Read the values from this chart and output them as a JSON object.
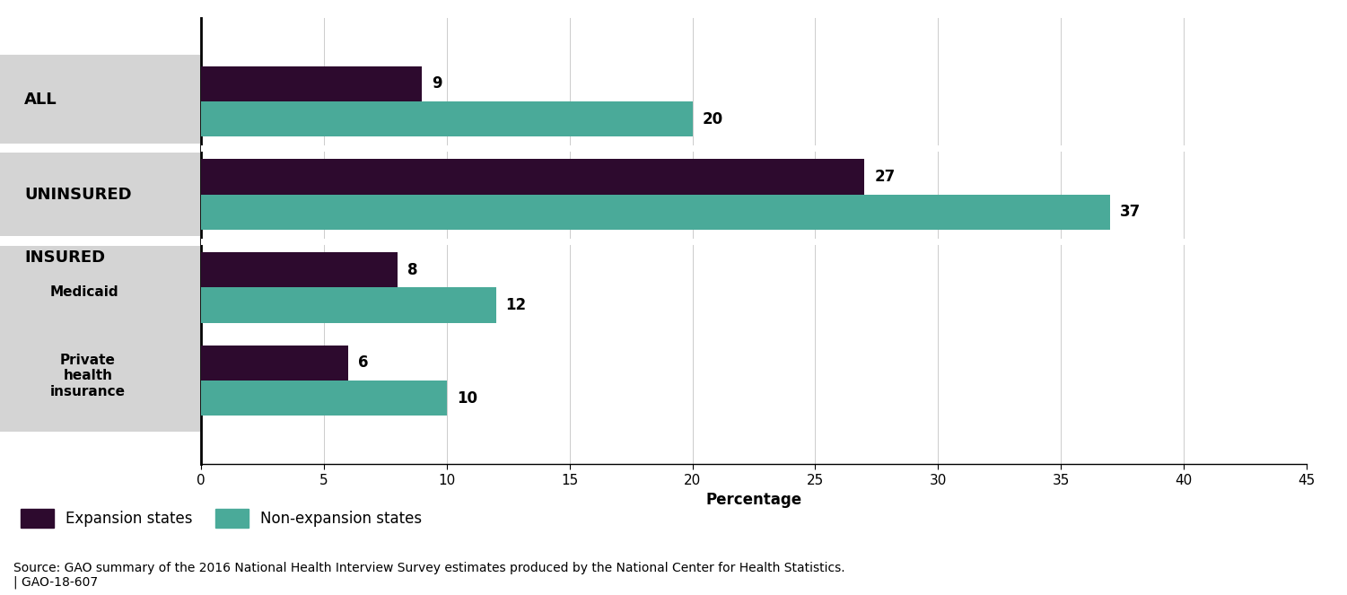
{
  "expansion_values": [
    9,
    27,
    8,
    6
  ],
  "nonexpansion_values": [
    20,
    37,
    12,
    10
  ],
  "expansion_color": "#2d0a2e",
  "nonexpansion_color": "#4aaa99",
  "bar_height": 0.38,
  "xlim": [
    0,
    45
  ],
  "xticks": [
    0,
    5,
    10,
    15,
    20,
    25,
    30,
    35,
    40,
    45
  ],
  "xlabel": "Percentage",
  "legend_labels": [
    "Expansion states",
    "Non-expansion states"
  ],
  "source_text": "Source: GAO summary of the 2016 National Health Interview Survey estimates produced by the National Center for Health Statistics.\n| GAO-18-607",
  "background_color": "#ffffff",
  "label_panel_color": "#d4d4d4",
  "plot_bg_color": "#ffffff",
  "label_fontsize": 13,
  "sublabel_fontsize": 11,
  "tick_fontsize": 11,
  "source_fontsize": 10,
  "legend_fontsize": 12,
  "value_label_fontsize": 12,
  "xlabel_fontsize": 12,
  "sep_line_color": "#ffffff",
  "grid_color": "#cccccc"
}
